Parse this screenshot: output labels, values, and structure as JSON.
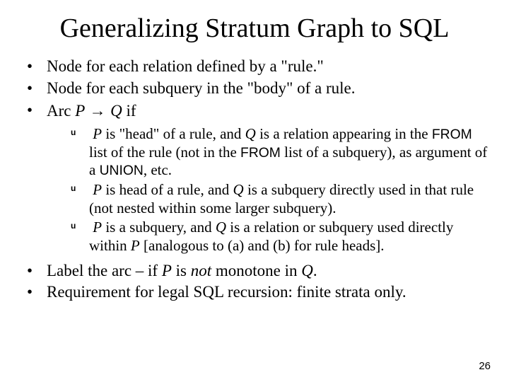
{
  "title": "Generalizing Stratum Graph to SQL",
  "bullets": {
    "b1": "Node for each relation defined by a \"rule.\"",
    "b2": "Node for each subquery in the \"body\" of a rule.",
    "b3_pre": "Arc ",
    "b3_P": "P",
    "b3_arrow": " → ",
    "b3_Q": "Q",
    "b3_post": " if",
    "s1_a": "P",
    "s1_b": " is \"head\" of a rule, and ",
    "s1_c": "Q",
    "s1_d": " is a relation appearing in the ",
    "s1_from1": "FROM",
    "s1_e": " list of the rule (not in the ",
    "s1_from2": "FROM",
    "s1_f": " list of a subquery), as argument of a ",
    "s1_union": "UNION",
    "s1_g": ", etc.",
    "s2_a": "P",
    "s2_b": " is head of a rule, and ",
    "s2_c": "Q",
    "s2_d": " is a subquery directly used in that rule (not nested within some larger subquery).",
    "s3_a": "P",
    "s3_b": " is a subquery, and ",
    "s3_c": "Q",
    "s3_d": " is a relation or subquery used directly within ",
    "s3_e": "P",
    "s3_f": " [analogous to (a) and (b) for rule heads].",
    "b4_a": "Label the arc – if ",
    "b4_b": "P",
    "b4_c": " is ",
    "b4_d": "not",
    "b4_e": " monotone in ",
    "b4_f": "Q",
    "b4_g": ".",
    "b5": "Requirement for legal SQL recursion: finite strata only."
  },
  "pagenum": "26",
  "colors": {
    "background": "#ffffff",
    "text": "#000000"
  },
  "fontsizes": {
    "title_pt": 38,
    "bullet_pt": 23,
    "subbullet_pt": 21,
    "pagenum_pt": 15
  }
}
